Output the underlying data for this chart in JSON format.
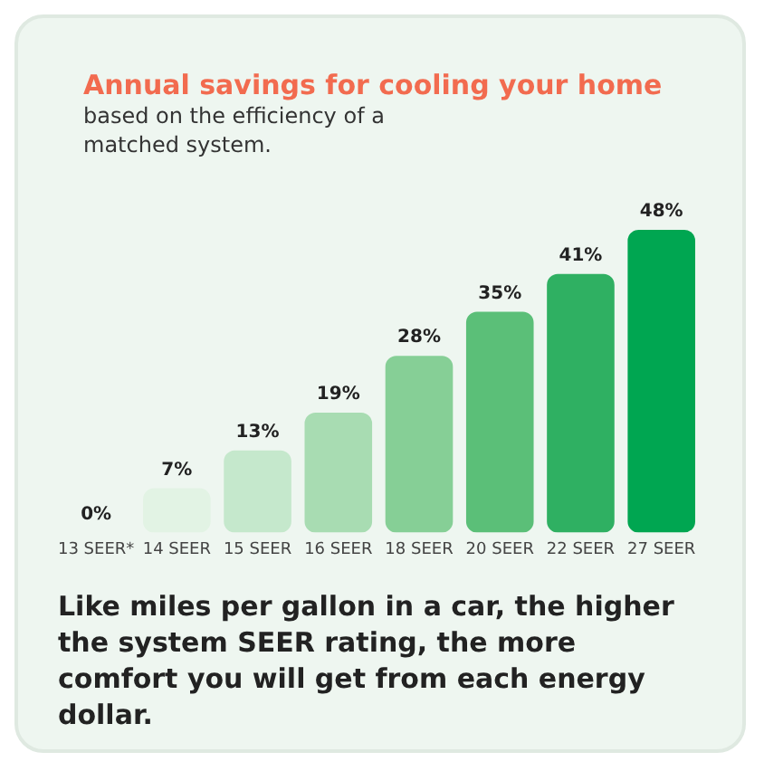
{
  "chart_data": {
    "type": "bar",
    "title": "Annual savings for cooling your home",
    "subtitle": "based on the efficiency of a matched system.",
    "categories": [
      "13 SEER*",
      "14 SEER",
      "15 SEER",
      "16 SEER",
      "18 SEER",
      "20 SEER",
      "22 SEER",
      "27 SEER"
    ],
    "values": [
      0,
      7,
      13,
      19,
      28,
      35,
      41,
      48
    ],
    "value_labels": [
      "0%",
      "7%",
      "13%",
      "19%",
      "28%",
      "35%",
      "41%",
      "48%"
    ],
    "colors": [
      "#e6f4e8",
      "#e2f3e4",
      "#c5e8cc",
      "#a8dcb2",
      "#86cf96",
      "#5bbf78",
      "#2fb062",
      "#00a651"
    ],
    "annotations": [
      "Like miles per gallon in a car, the higher the system SEER rating, the more comfort you will get from each energy dollar."
    ],
    "grid": false,
    "legend": false
  }
}
